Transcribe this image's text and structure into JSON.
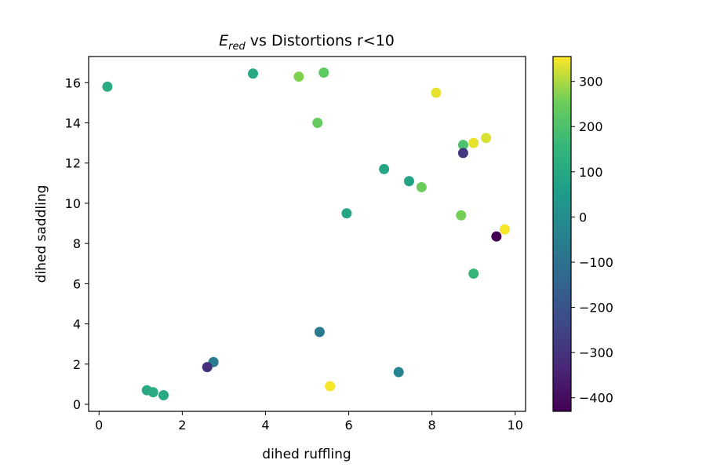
{
  "chart_data": {
    "type": "scatter",
    "title_main": "E",
    "title_sub": "red",
    "title_rest": " vs Distortions r<10",
    "xlabel": "dihed ruffling",
    "ylabel": "dihed saddling",
    "xlim": [
      -0.25,
      10.25
    ],
    "ylim": [
      -0.35,
      17.3
    ],
    "xticks": [
      0,
      2,
      4,
      6,
      8,
      10
    ],
    "yticks": [
      0,
      2,
      4,
      6,
      8,
      10,
      12,
      14,
      16
    ],
    "colorbar": {
      "colormap": "viridis",
      "range": [
        -430,
        355
      ],
      "ticks": [
        300,
        200,
        100,
        0,
        -100,
        -200,
        -300,
        -400
      ],
      "tick_labels": [
        "300",
        "200",
        "100",
        "0",
        "−100",
        "−200",
        "−300",
        "−400"
      ]
    },
    "grid": false,
    "points": [
      {
        "x": 0.2,
        "y": 15.8,
        "c": 110
      },
      {
        "x": 3.7,
        "y": 16.45,
        "c": 100
      },
      {
        "x": 4.8,
        "y": 16.3,
        "c": 270
      },
      {
        "x": 5.4,
        "y": 16.5,
        "c": 230
      },
      {
        "x": 5.25,
        "y": 14.0,
        "c": 240
      },
      {
        "x": 8.1,
        "y": 15.5,
        "c": 340
      },
      {
        "x": 8.75,
        "y": 12.9,
        "c": 200
      },
      {
        "x": 9.0,
        "y": 13.0,
        "c": 340
      },
      {
        "x": 9.3,
        "y": 13.25,
        "c": 330
      },
      {
        "x": 8.75,
        "y": 12.5,
        "c": -290
      },
      {
        "x": 6.85,
        "y": 11.7,
        "c": 90
      },
      {
        "x": 7.45,
        "y": 11.1,
        "c": 80
      },
      {
        "x": 7.75,
        "y": 10.8,
        "c": 250
      },
      {
        "x": 5.95,
        "y": 9.5,
        "c": 90
      },
      {
        "x": 8.7,
        "y": 9.4,
        "c": 260
      },
      {
        "x": 9.55,
        "y": 8.35,
        "c": -430
      },
      {
        "x": 9.75,
        "y": 8.7,
        "c": 350
      },
      {
        "x": 9.0,
        "y": 6.5,
        "c": 150
      },
      {
        "x": 5.3,
        "y": 3.6,
        "c": -70
      },
      {
        "x": 2.75,
        "y": 2.1,
        "c": -60
      },
      {
        "x": 2.6,
        "y": 1.85,
        "c": -310
      },
      {
        "x": 7.2,
        "y": 1.6,
        "c": -30
      },
      {
        "x": 5.55,
        "y": 0.9,
        "c": 350
      },
      {
        "x": 1.15,
        "y": 0.7,
        "c": 100
      },
      {
        "x": 1.3,
        "y": 0.6,
        "c": 110
      },
      {
        "x": 1.55,
        "y": 0.45,
        "c": 100
      }
    ]
  }
}
